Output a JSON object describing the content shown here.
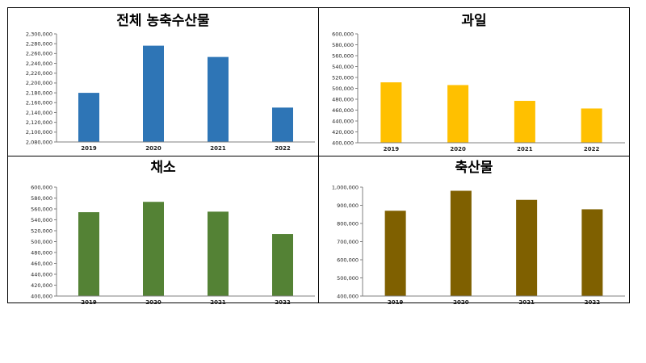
{
  "chart_data": [
    {
      "type": "bar",
      "title": "전체 농축수산물",
      "categories": [
        "2019",
        "2020",
        "2021",
        "2022"
      ],
      "values": [
        2180000,
        2276000,
        2253000,
        2150000
      ],
      "ylim": [
        2080000,
        2300000
      ],
      "ytick_step": 20000,
      "color": "#2e75b6"
    },
    {
      "type": "bar",
      "title": "과일",
      "categories": [
        "2019",
        "2020",
        "2021",
        "2022"
      ],
      "values": [
        511000,
        506000,
        477000,
        463000
      ],
      "ylim": [
        400000,
        600000
      ],
      "ytick_step": 20000,
      "color": "#ffc000"
    },
    {
      "type": "bar",
      "title": "채소",
      "categories": [
        "2019",
        "2020",
        "2021",
        "2022"
      ],
      "values": [
        554000,
        573000,
        555000,
        514000
      ],
      "ylim": [
        400000,
        600000
      ],
      "ytick_step": 20000,
      "color": "#548235"
    },
    {
      "type": "bar",
      "title": "축산물",
      "categories": [
        "2019",
        "2020",
        "2021",
        "2022"
      ],
      "values": [
        870000,
        980000,
        930000,
        878000
      ],
      "ylim": [
        400000,
        1000000
      ],
      "ytick_step": 100000,
      "color": "#7f6000"
    }
  ]
}
